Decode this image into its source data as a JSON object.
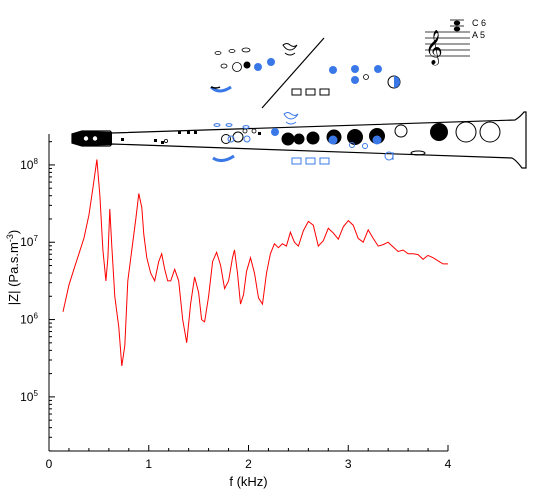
{
  "chart_data": {
    "type": "line",
    "xlabel": "f (kHz)",
    "ylabel": {
      "base": "|Z| (Pa.s.m",
      "sup": "-3",
      "tail": ")"
    },
    "xlim": [
      0,
      4
    ],
    "ylim_log10": [
      4.3,
      8.4
    ],
    "log_y": true,
    "x_ticks": [
      0,
      1,
      2,
      3,
      4
    ],
    "y_ticks_log10": [
      5,
      6,
      7,
      8
    ],
    "y_tick_labels": [
      {
        "base": "10",
        "exp": "5"
      },
      {
        "base": "10",
        "exp": "6"
      },
      {
        "base": "10",
        "exp": "7"
      },
      {
        "base": "10",
        "exp": "8"
      }
    ],
    "grid": false,
    "series": [
      {
        "color": "#ff0000",
        "x": [
          0.14,
          0.2,
          0.25,
          0.3,
          0.35,
          0.4,
          0.44,
          0.48,
          0.51,
          0.54,
          0.57,
          0.59,
          0.61,
          0.63,
          0.66,
          0.7,
          0.73,
          0.76,
          0.79,
          0.83,
          0.87,
          0.9,
          0.93,
          0.95,
          0.98,
          1.02,
          1.06,
          1.1,
          1.13,
          1.16,
          1.19,
          1.22,
          1.26,
          1.3,
          1.34,
          1.38,
          1.42,
          1.46,
          1.5,
          1.53,
          1.56,
          1.6,
          1.64,
          1.68,
          1.72,
          1.76,
          1.8,
          1.84,
          1.86,
          1.89,
          1.92,
          1.95,
          1.98,
          2.02,
          2.06,
          2.1,
          2.14,
          2.18,
          2.22,
          2.26,
          2.3,
          2.34,
          2.38,
          2.42,
          2.46,
          2.5,
          2.55,
          2.6,
          2.65,
          2.7,
          2.75,
          2.8,
          2.85,
          2.9,
          2.95,
          3.0,
          3.05,
          3.1,
          3.15,
          3.2,
          3.25,
          3.3,
          3.35,
          3.4,
          3.45,
          3.5,
          3.55,
          3.6,
          3.65,
          3.7,
          3.75,
          3.8,
          3.85,
          3.9,
          3.95,
          4.0
        ],
        "y_log10": [
          6.1,
          6.45,
          6.65,
          6.85,
          7.05,
          7.35,
          7.7,
          8.07,
          7.6,
          6.9,
          6.5,
          6.8,
          7.43,
          6.95,
          6.3,
          5.9,
          5.4,
          5.66,
          6.5,
          6.9,
          7.3,
          7.63,
          7.45,
          7.1,
          6.8,
          6.6,
          6.5,
          6.75,
          6.85,
          6.65,
          6.5,
          6.5,
          6.65,
          6.5,
          6.0,
          5.7,
          6.2,
          6.55,
          6.35,
          6.0,
          5.97,
          6.3,
          6.75,
          6.87,
          6.7,
          6.4,
          6.5,
          6.8,
          6.9,
          6.6,
          6.2,
          6.32,
          6.62,
          6.8,
          6.6,
          6.28,
          6.2,
          6.6,
          6.85,
          6.98,
          6.93,
          6.98,
          6.95,
          7.13,
          7.0,
          6.95,
          7.15,
          7.27,
          7.22,
          6.95,
          7.02,
          7.18,
          7.12,
          7.04,
          7.2,
          7.28,
          7.22,
          7.05,
          7.0,
          7.16,
          7.05,
          6.95,
          6.97,
          7.0,
          6.94,
          6.88,
          6.9,
          6.85,
          6.85,
          6.84,
          6.78,
          6.83,
          6.8,
          6.76,
          6.72,
          6.72
        ]
      }
    ]
  },
  "inset": {
    "notation": {
      "upper_note": "C 6",
      "lower_note": "A 5",
      "clef": "𝄞"
    },
    "colors": {
      "open": "#ffffff",
      "closed": "#000000",
      "highlight": "#3a78e8",
      "outline": "#000000"
    },
    "instrument": "clarinet fingering diagram"
  }
}
